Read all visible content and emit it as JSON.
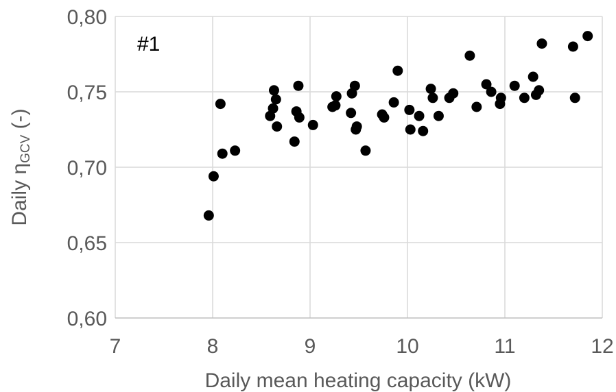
{
  "chart_data": {
    "type": "scatter",
    "annotation": "#1",
    "xlabel": "Daily mean heating capacity (kW)",
    "ylabel": {
      "prefix": "Daily η",
      "subscript": "GCV",
      "suffix": " (-)"
    },
    "xlim": [
      7,
      12
    ],
    "ylim": [
      0.6,
      0.8
    ],
    "x_ticks": [
      7,
      8,
      9,
      10,
      11,
      12
    ],
    "x_tick_labels": [
      "7",
      "8",
      "9",
      "10",
      "11",
      "12"
    ],
    "y_ticks": [
      0.6,
      0.65,
      0.7,
      0.75,
      0.8
    ],
    "y_tick_labels": [
      "0,60",
      "0,65",
      "0,70",
      "0,75",
      "0,80"
    ],
    "grid": true,
    "marker_color": "#000000",
    "grid_color": "#d9d9d9",
    "axis_color": "#bfbfbf",
    "text_color": "#595959",
    "series": [
      {
        "points": [
          [
            7.96,
            0.668
          ],
          [
            8.01,
            0.694
          ],
          [
            8.08,
            0.742
          ],
          [
            8.1,
            0.709
          ],
          [
            8.23,
            0.711
          ],
          [
            8.59,
            0.734
          ],
          [
            8.62,
            0.739
          ],
          [
            8.63,
            0.751
          ],
          [
            8.65,
            0.745
          ],
          [
            8.66,
            0.727
          ],
          [
            8.84,
            0.717
          ],
          [
            8.86,
            0.737
          ],
          [
            8.88,
            0.754
          ],
          [
            8.89,
            0.733
          ],
          [
            9.03,
            0.728
          ],
          [
            9.23,
            0.74
          ],
          [
            9.26,
            0.741
          ],
          [
            9.27,
            0.747
          ],
          [
            9.42,
            0.736
          ],
          [
            9.43,
            0.749
          ],
          [
            9.46,
            0.754
          ],
          [
            9.47,
            0.725
          ],
          [
            9.48,
            0.727
          ],
          [
            9.57,
            0.711
          ],
          [
            9.74,
            0.735
          ],
          [
            9.76,
            0.733
          ],
          [
            9.86,
            0.743
          ],
          [
            9.9,
            0.764
          ],
          [
            10.02,
            0.738
          ],
          [
            10.03,
            0.725
          ],
          [
            10.12,
            0.734
          ],
          [
            10.16,
            0.724
          ],
          [
            10.24,
            0.752
          ],
          [
            10.26,
            0.746
          ],
          [
            10.32,
            0.734
          ],
          [
            10.43,
            0.746
          ],
          [
            10.47,
            0.749
          ],
          [
            10.64,
            0.774
          ],
          [
            10.71,
            0.74
          ],
          [
            10.81,
            0.755
          ],
          [
            10.86,
            0.75
          ],
          [
            10.95,
            0.742
          ],
          [
            10.96,
            0.746
          ],
          [
            11.1,
            0.754
          ],
          [
            11.2,
            0.746
          ],
          [
            11.29,
            0.76
          ],
          [
            11.32,
            0.748
          ],
          [
            11.35,
            0.751
          ],
          [
            11.38,
            0.782
          ],
          [
            11.7,
            0.78
          ],
          [
            11.72,
            0.746
          ],
          [
            11.85,
            0.787
          ]
        ]
      }
    ]
  }
}
